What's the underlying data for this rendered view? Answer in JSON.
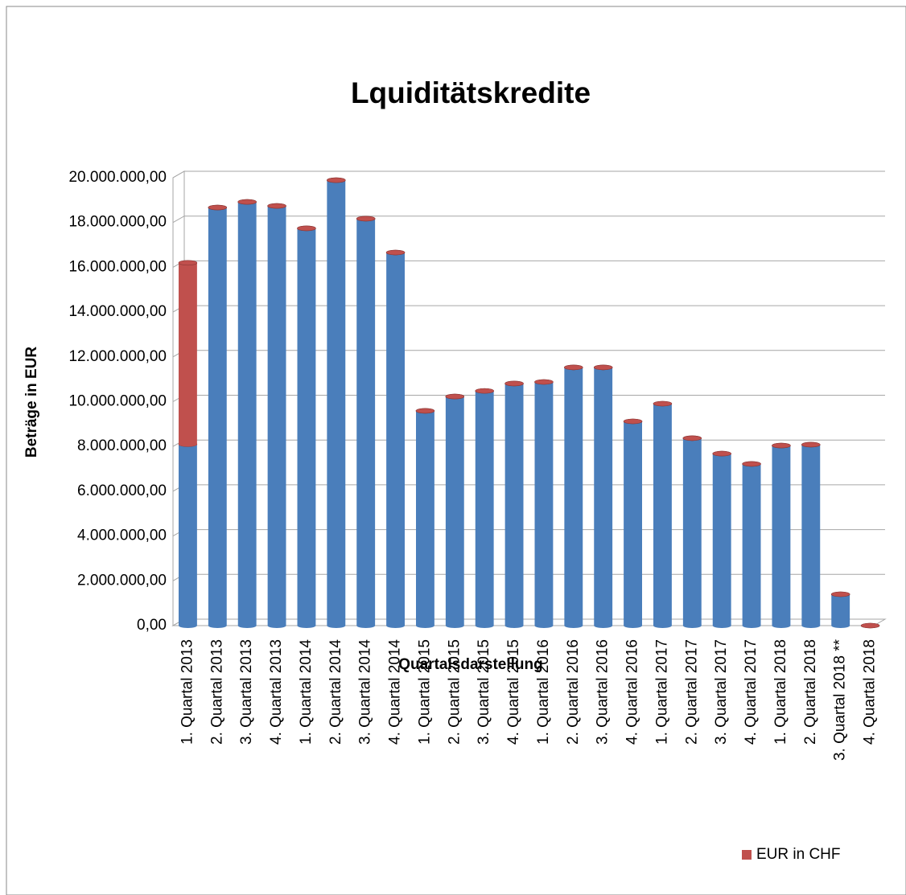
{
  "chart_data": {
    "type": "bar",
    "stacked": true,
    "title": "Lquiditätskredite",
    "x_label": "Quartalsdarstellung",
    "y_label": "Beträge in EUR",
    "categories": [
      "1. Quartal 2013",
      "2. Quartal 2013",
      "3. Quartal 2013",
      "4. Quartal 2013",
      "1. Quartal 2014",
      "2. Quartal 2014",
      "3. Quartal 2014",
      "4. Quartal 2014",
      "1. Quartal 2015",
      "2. Quartal 2015",
      "3. Quartal 2015",
      "4. Quartal 2015",
      "1. Quartal 2016",
      "2. Quartal 2016",
      "3. Quartal 2016",
      "4. Quartal 2016",
      "1. Quartal 2017",
      "2. Quartal 2017",
      "3. Quartal 2017",
      "4. Quartal 2017",
      "1. Quartal 2018",
      "2. Quartal 2018",
      "3. Quartal 2018 **",
      "4. Quartal 2018"
    ],
    "series": [
      {
        "color": "#4a7ebb",
        "values": [
          8100000,
          18670000,
          18920000,
          18740000,
          17740000,
          19890000,
          18170000,
          16660000,
          9590000,
          10230000,
          10480000,
          10810000,
          10880000,
          11530000,
          11530000,
          9120000,
          9910000,
          8370000,
          7680000,
          7220000,
          8040000,
          8080000,
          1400000,
          0
        ]
      },
      {
        "name": "EUR in CHF",
        "color": "#c0504d",
        "values": [
          8100000,
          0,
          0,
          0,
          0,
          0,
          0,
          0,
          0,
          0,
          0,
          0,
          0,
          0,
          0,
          0,
          0,
          0,
          0,
          0,
          0,
          0,
          0,
          0
        ]
      }
    ],
    "ylim": [
      0,
      20000000
    ],
    "yticks": [
      {
        "value": 0,
        "label": "0,00"
      },
      {
        "value": 2000000,
        "label": "2.000.000,00"
      },
      {
        "value": 4000000,
        "label": "4.000.000,00"
      },
      {
        "value": 6000000,
        "label": "6.000.000,00"
      },
      {
        "value": 8000000,
        "label": "8.000.000,00"
      },
      {
        "value": 10000000,
        "label": "10.000.000,00"
      },
      {
        "value": 12000000,
        "label": "12.000.000,00"
      },
      {
        "value": 14000000,
        "label": "14.000.000,00"
      },
      {
        "value": 16000000,
        "label": "16.000.000,00"
      },
      {
        "value": 18000000,
        "label": "18.000.000,00"
      },
      {
        "value": 20000000,
        "label": "20.000.000,00"
      }
    ],
    "grid": true,
    "legend": "bottom-right"
  }
}
